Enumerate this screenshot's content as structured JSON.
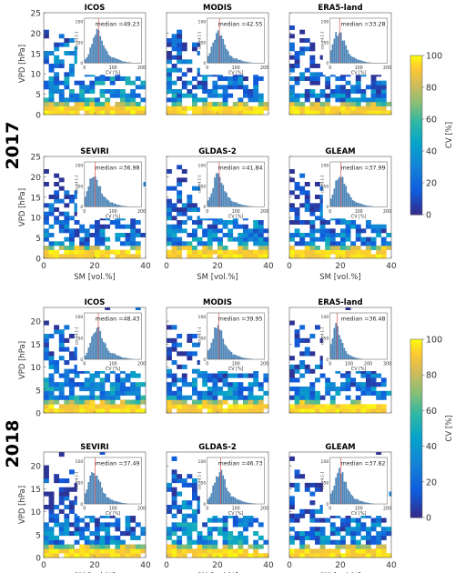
{
  "colorbar": {
    "label": "CV [%]",
    "ticks": [
      "0",
      "20",
      "40",
      "60",
      "80",
      "100"
    ],
    "range": [
      0,
      100
    ],
    "colormap": "parula"
  },
  "axis_labels": {
    "x": "SM [vol.%]",
    "y": "VPD [hPa]"
  },
  "inset_axis_labels": {
    "x": "CV [%]",
    "y": "count [-]"
  },
  "chart_data": [
    {
      "type": "heatmap",
      "year": "2017",
      "x_ticks": [
        "0",
        "20",
        "40"
      ],
      "y_ticks": [
        "0",
        "5",
        "10",
        "15",
        "20",
        "25"
      ],
      "xlim": [
        0,
        40
      ],
      "ylim": [
        0,
        25
      ],
      "panels": [
        {
          "title": "ICOS",
          "median_label": "median =49.23",
          "median": 49.23,
          "inset_x_ticks": [
            "0",
            "100",
            "200"
          ],
          "inset_y_ticks": [
            "0",
            "50",
            "100"
          ]
        },
        {
          "title": "MODIS",
          "median_label": "median =42.55",
          "median": 42.55,
          "inset_x_ticks": [
            "0",
            "100",
            "200"
          ],
          "inset_y_ticks": [
            "0",
            "50",
            "100"
          ]
        },
        {
          "title": "ERA5-land",
          "median_label": "median =33.28",
          "median": 33.28,
          "inset_x_ticks": [
            "0",
            "100",
            "200"
          ],
          "inset_y_ticks": [
            "0",
            "50",
            "100"
          ]
        },
        {
          "title": "SEVIRI",
          "median_label": "median =36.98",
          "median": 36.98,
          "inset_x_ticks": [
            "0",
            "100",
            "200"
          ],
          "inset_y_ticks": [
            "0",
            "50",
            "100"
          ]
        },
        {
          "title": "GLDAS-2",
          "median_label": "median =41.84",
          "median": 41.84,
          "inset_x_ticks": [
            "0",
            "100",
            "200"
          ],
          "inset_y_ticks": [
            "0",
            "50",
            "100"
          ]
        },
        {
          "title": "GLEAM",
          "median_label": "median =37.99",
          "median": 37.99,
          "inset_x_ticks": [
            "0",
            "100",
            "200"
          ],
          "inset_y_ticks": [
            "0",
            "50",
            "100"
          ]
        }
      ]
    },
    {
      "type": "heatmap",
      "year": "2018",
      "x_ticks": [
        "0",
        "20",
        "40"
      ],
      "y_ticks": [
        "0",
        "5",
        "10",
        "15",
        "20"
      ],
      "xlim": [
        0,
        40
      ],
      "ylim": [
        0,
        23
      ],
      "panels": [
        {
          "title": "ICOS",
          "median_label": "median =48.43",
          "median": 48.43,
          "inset_x_ticks": [
            "0",
            "100",
            "200"
          ],
          "inset_y_ticks": [
            "0",
            "50",
            "100"
          ]
        },
        {
          "title": "MODIS",
          "median_label": "median =39.95",
          "median": 39.95,
          "inset_x_ticks": [
            "0",
            "100",
            "200"
          ],
          "inset_y_ticks": [
            "0",
            "50",
            "100"
          ]
        },
        {
          "title": "ERA5-land",
          "median_label": "median =36.48",
          "median": 36.48,
          "inset_x_ticks": [
            "0",
            "100",
            "200",
            "300"
          ],
          "inset_y_ticks": [
            "0",
            "50",
            "100"
          ]
        },
        {
          "title": "SEVIRI",
          "median_label": "median =37.49",
          "median": 37.49,
          "inset_x_ticks": [
            "0",
            "100",
            "200"
          ],
          "inset_y_ticks": [
            "0",
            "50",
            "100"
          ]
        },
        {
          "title": "GLDAS-2",
          "median_label": "median =46.73",
          "median": 46.73,
          "inset_x_ticks": [
            "0",
            "100",
            "200"
          ],
          "inset_y_ticks": [
            "0",
            "50",
            "100"
          ]
        },
        {
          "title": "GLEAM",
          "median_label": "median =37.82",
          "median": 37.82,
          "inset_x_ticks": [
            "0",
            "100",
            "200"
          ],
          "inset_y_ticks": [
            "0",
            "50",
            "100"
          ]
        }
      ]
    }
  ]
}
